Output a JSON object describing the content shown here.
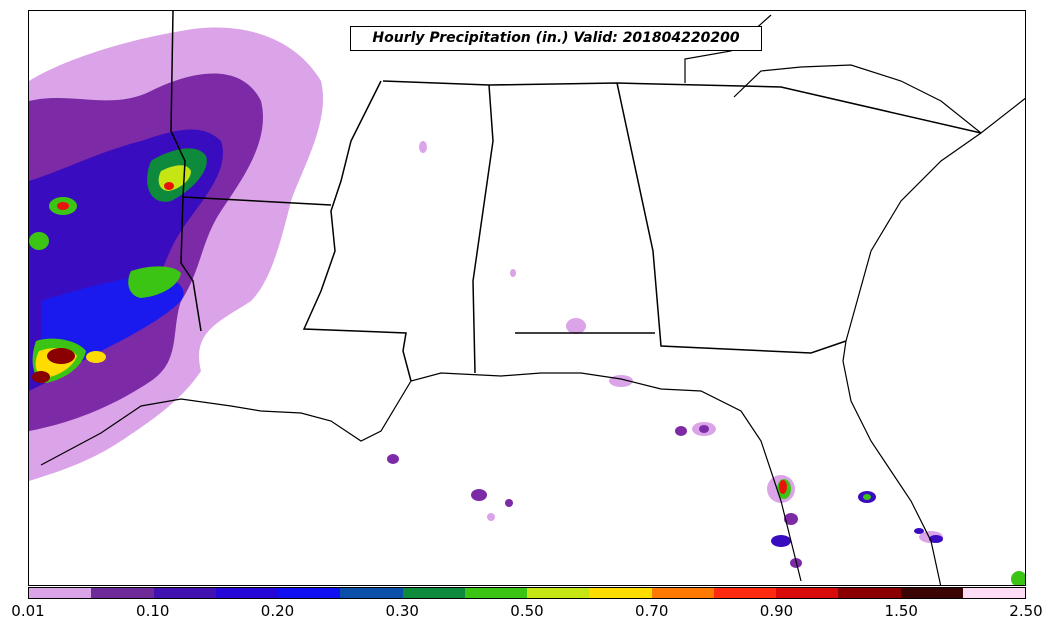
{
  "map": {
    "title": "Hourly Precipitation (in.) Valid: 201804220200",
    "region": "Southeastern United States",
    "precip_colors": {
      "light_lavender": "#dba3e8",
      "purple": "#7d2aa6",
      "indigo": "#3a0cbf",
      "blue": "#1a1aee",
      "teal_green": "#0d8a3c",
      "green": "#3cc414",
      "yellow_green": "#c6e614",
      "yellow": "#ffdc00",
      "red": "#e8140c",
      "dark_red": "#8a0000"
    }
  },
  "colorbar": {
    "colors": [
      "#dba3e8",
      "#6f2a9a",
      "#4212b0",
      "#2508d8",
      "#1010f0",
      "#0b4fa8",
      "#0d8a3c",
      "#3cc414",
      "#c6e614",
      "#ffdc00",
      "#ff7a00",
      "#ff2a10",
      "#d80a0a",
      "#8a0000",
      "#3a0404",
      "#ffdcf5"
    ],
    "tick_labels": [
      "0.01",
      "0.10",
      "0.20",
      "0.30",
      "0.50",
      "0.70",
      "0.90",
      "1.50",
      "2.50"
    ]
  }
}
